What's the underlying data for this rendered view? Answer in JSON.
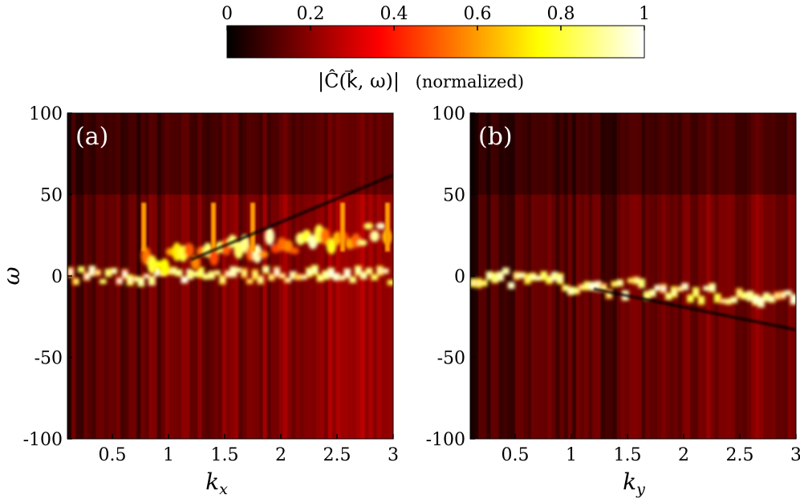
{
  "colorbar": {
    "ticks": [
      0,
      0.2,
      0.4,
      0.6,
      0.8,
      1
    ],
    "tick_labels": [
      "0",
      "0.2",
      "0.4",
      "0.6",
      "0.8",
      "1"
    ],
    "label": "|Ĉ(k⃗, ω)|",
    "label_suffix": "(normalized)",
    "colormap": "hot",
    "range": [
      0,
      1
    ]
  },
  "chart_data": [
    {
      "type": "heatmap",
      "panel": "(a)",
      "xlabel": "k",
      "xlabel_sub": "x",
      "ylabel": "ω",
      "xlim": [
        0.1,
        3.0
      ],
      "ylim": [
        -100,
        100
      ],
      "xticks": [
        0.5,
        1,
        1.5,
        2,
        2.5,
        3
      ],
      "xtick_labels": [
        "0.5",
        "1",
        "1.5",
        "2",
        "2.5",
        "3"
      ],
      "yticks": [
        100,
        50,
        0,
        -50,
        -100
      ],
      "ytick_labels": [
        "100",
        "50",
        "0",
        "-50",
        "-100"
      ],
      "features": {
        "main_band_omega": 0,
        "upper_branch": {
          "from": [
            0.8,
            10
          ],
          "to": [
            3.0,
            28
          ]
        },
        "dark_line": {
          "from": [
            1.2,
            10
          ],
          "to": [
            3.0,
            62
          ]
        }
      }
    },
    {
      "type": "heatmap",
      "panel": "(b)",
      "xlabel": "k",
      "xlabel_sub": "y",
      "ylabel": "",
      "xlim": [
        0.1,
        3.0
      ],
      "ylim": [
        -100,
        100
      ],
      "xticks": [
        0.5,
        1,
        1.5,
        2,
        2.5,
        3
      ],
      "xtick_labels": [
        "0.5",
        "1",
        "1.5",
        "2",
        "2.5",
        "3"
      ],
      "yticks": [
        100,
        50,
        0,
        -50,
        -100
      ],
      "ytick_labels": [
        "100",
        "50",
        "0",
        "-50",
        "-100"
      ],
      "features": {
        "main_band": {
          "from": [
            0.1,
            0
          ],
          "to": [
            3.0,
            -15
          ]
        },
        "dark_line": {
          "from": [
            1.2,
            -8
          ],
          "to": [
            3.0,
            -33
          ]
        }
      }
    }
  ]
}
